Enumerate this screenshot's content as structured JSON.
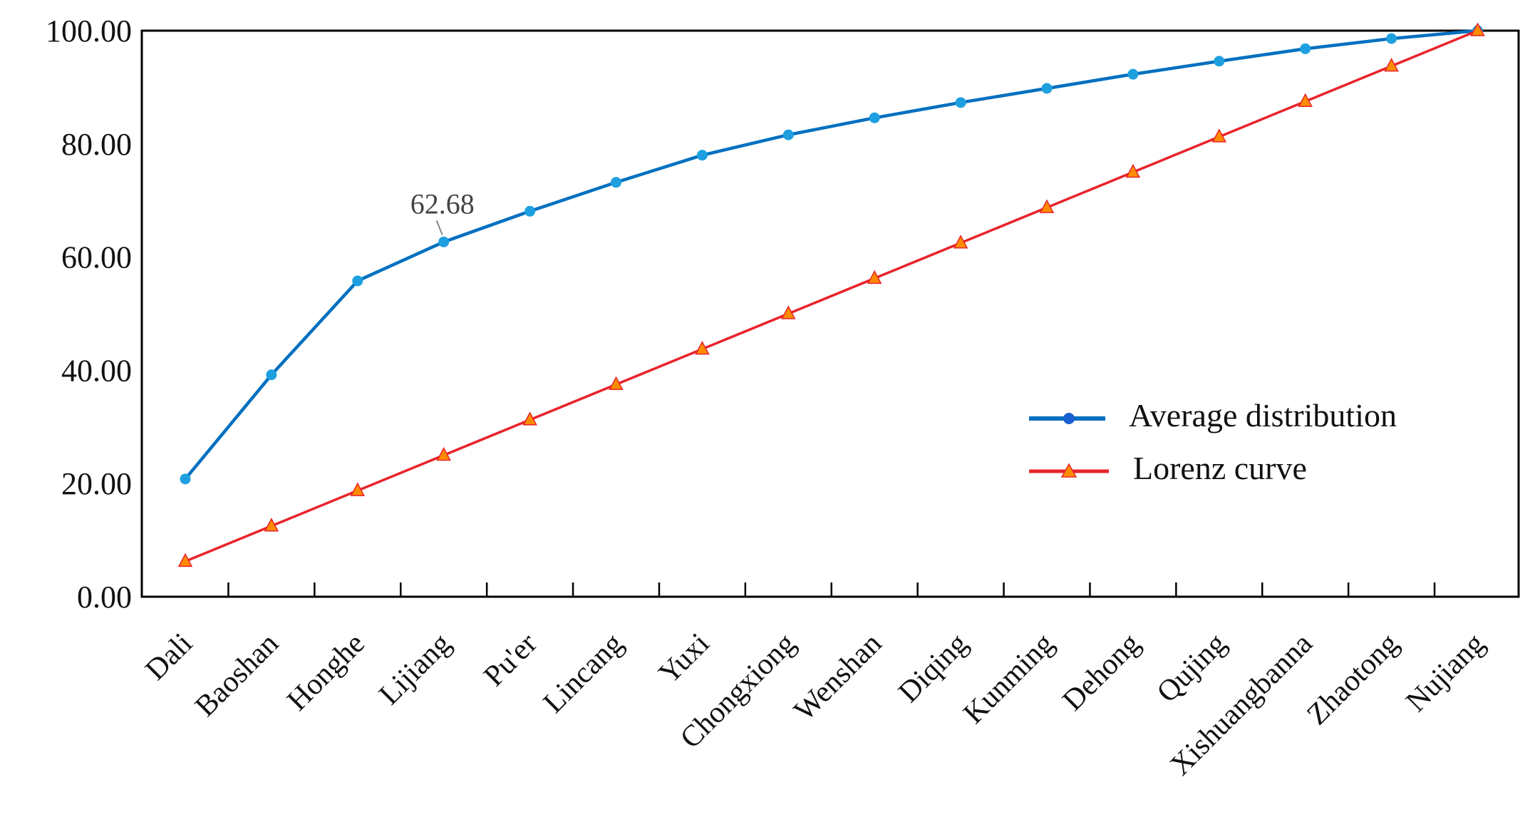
{
  "chart_data": {
    "type": "line",
    "title": "",
    "xlabel": "",
    "ylabel": "",
    "ylim": [
      0,
      100
    ],
    "yticks": [
      "0.00",
      "20.00",
      "40.00",
      "60.00",
      "80.00",
      "100.00"
    ],
    "grid": false,
    "legend_position": "center-right",
    "categories": [
      "Dali",
      "Baoshan",
      "Honghe",
      "Lijiang",
      "Pu'er",
      "Lincang",
      "Yuxi",
      "Chongxiong",
      "Wenshan",
      "Diqing",
      "Kunming",
      "Dehong",
      "Qujing",
      "Xishuangbanna",
      "Zhaotong",
      "Nujiang"
    ],
    "series": [
      {
        "name": "Average distribution",
        "color": "#0070c0",
        "marker_color": "#1ea0e0",
        "marker": "circle",
        "values": [
          20.8,
          39.2,
          55.8,
          62.68,
          68.1,
          73.2,
          78.0,
          81.6,
          84.6,
          87.3,
          89.8,
          92.3,
          94.6,
          96.8,
          98.6,
          100
        ]
      },
      {
        "name": "Lorenz curve",
        "color": "#e8232b",
        "marker_color": "#ff8c00",
        "marker": "triangle",
        "values": [
          6.25,
          12.5,
          18.75,
          25,
          31.25,
          37.5,
          43.75,
          50,
          56.25,
          62.5,
          68.75,
          75,
          81.25,
          87.5,
          93.75,
          100
        ]
      }
    ],
    "annotations": [
      {
        "series": 0,
        "category": "Lijiang",
        "text": "62.68"
      }
    ]
  }
}
